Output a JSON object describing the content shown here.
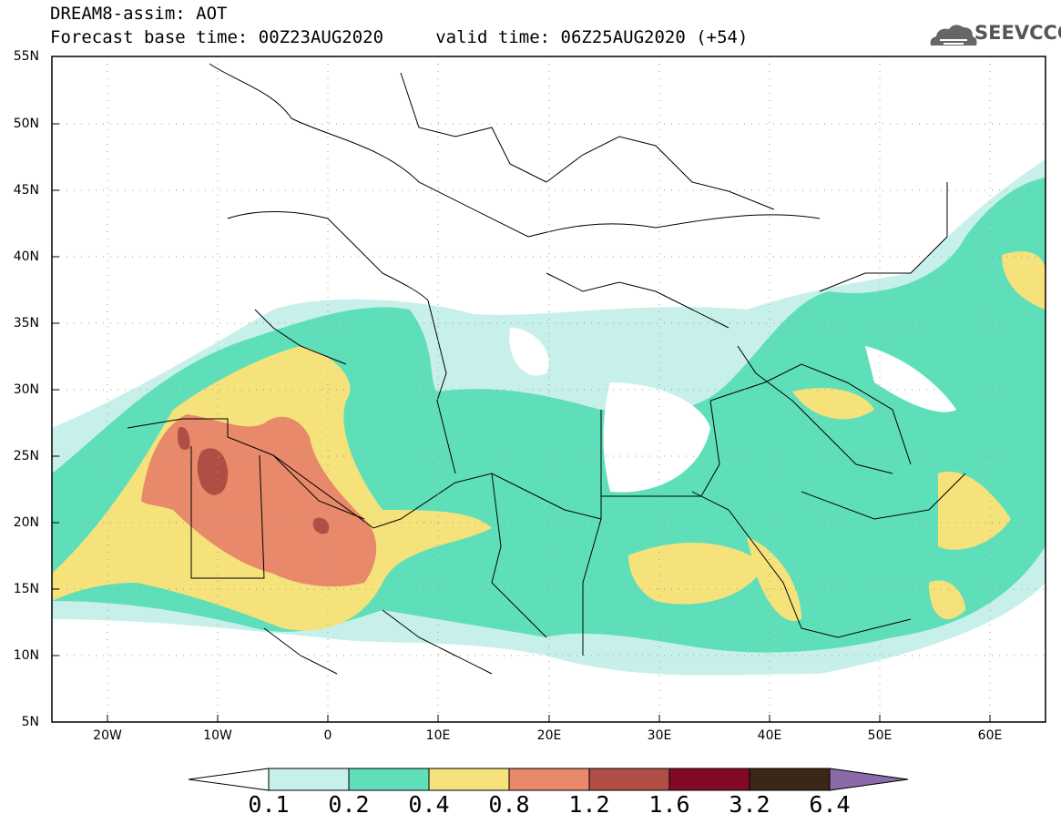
{
  "title": {
    "line1": "DREAM8-assim: AOT",
    "line2": "Forecast base time: 00Z23AUG2020     valid time: 06Z25AUG2020 (+54)"
  },
  "logo": {
    "text": "SEEVCCC",
    "icon": "cloud-icon"
  },
  "map": {
    "variable": "AOT",
    "lat_range": [
      5,
      55
    ],
    "lon_range": [
      -25,
      65
    ],
    "lat_ticks": [
      "55N",
      "50N",
      "45N",
      "40N",
      "35N",
      "30N",
      "25N",
      "20N",
      "15N",
      "10N",
      "5N"
    ],
    "lon_ticks": [
      "20W",
      "10W",
      "0",
      "10E",
      "20E",
      "30E",
      "40E",
      "50E",
      "60E"
    ]
  },
  "colorbar": {
    "labels": [
      "0.1",
      "0.2",
      "0.4",
      "0.8",
      "1.2",
      "1.6",
      "3.2",
      "6.4"
    ],
    "colors": [
      "#c8f0ea",
      "#5fdfb9",
      "#f5e27a",
      "#e8896b",
      "#b04e45",
      "#830a27",
      "#3a2717"
    ],
    "under_color": "#ffffff",
    "over_color": "#8a6aa8"
  }
}
